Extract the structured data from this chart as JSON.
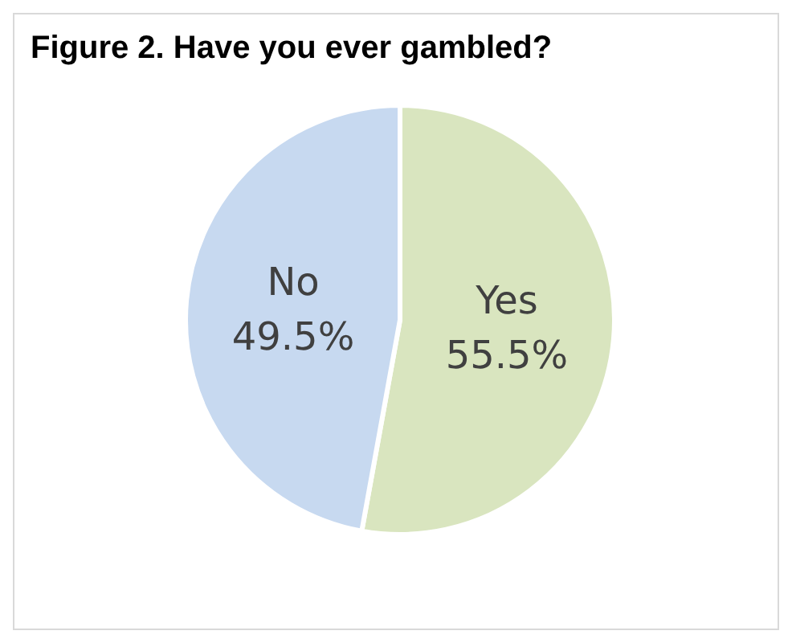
{
  "chart_data": {
    "type": "pie",
    "title": "Figure 2. Have you ever gambled?",
    "categories": [
      "Yes",
      "No"
    ],
    "values": [
      55.5,
      49.5
    ],
    "value_labels": [
      "55.5%",
      "49.5%"
    ],
    "colors": [
      "#d9e5bf",
      "#c7d9f0"
    ],
    "legend": false
  }
}
